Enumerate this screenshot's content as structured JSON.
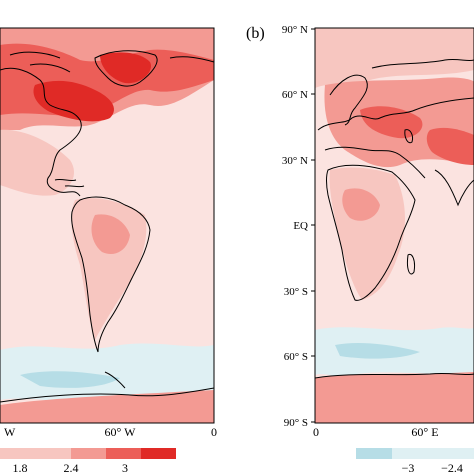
{
  "colors": {
    "pale": "#fbe3e0",
    "light": "#f7c6c0",
    "mid": "#f39a93",
    "strong": "#ec5e58",
    "deep": "#e02a26",
    "cool": "#dff0f3",
    "cool_mid": "#b6dde6",
    "coast": "#000000"
  },
  "panel_a": {
    "x_tick_labels": [
      "W",
      "60° W",
      "0"
    ],
    "colorbar_tick_labels": [
      "1.8",
      "2.4",
      "3"
    ]
  },
  "panel_b": {
    "panel_label": "(b)",
    "lat_tick_labels": [
      "90° N",
      "60° N",
      "30° N",
      "EQ",
      "30° S",
      "60° S",
      "90° S"
    ],
    "x_tick_labels": [
      "60° E",
      "0"
    ],
    "colorbar_tick_labels": [
      "−3",
      "−2.4"
    ]
  }
}
